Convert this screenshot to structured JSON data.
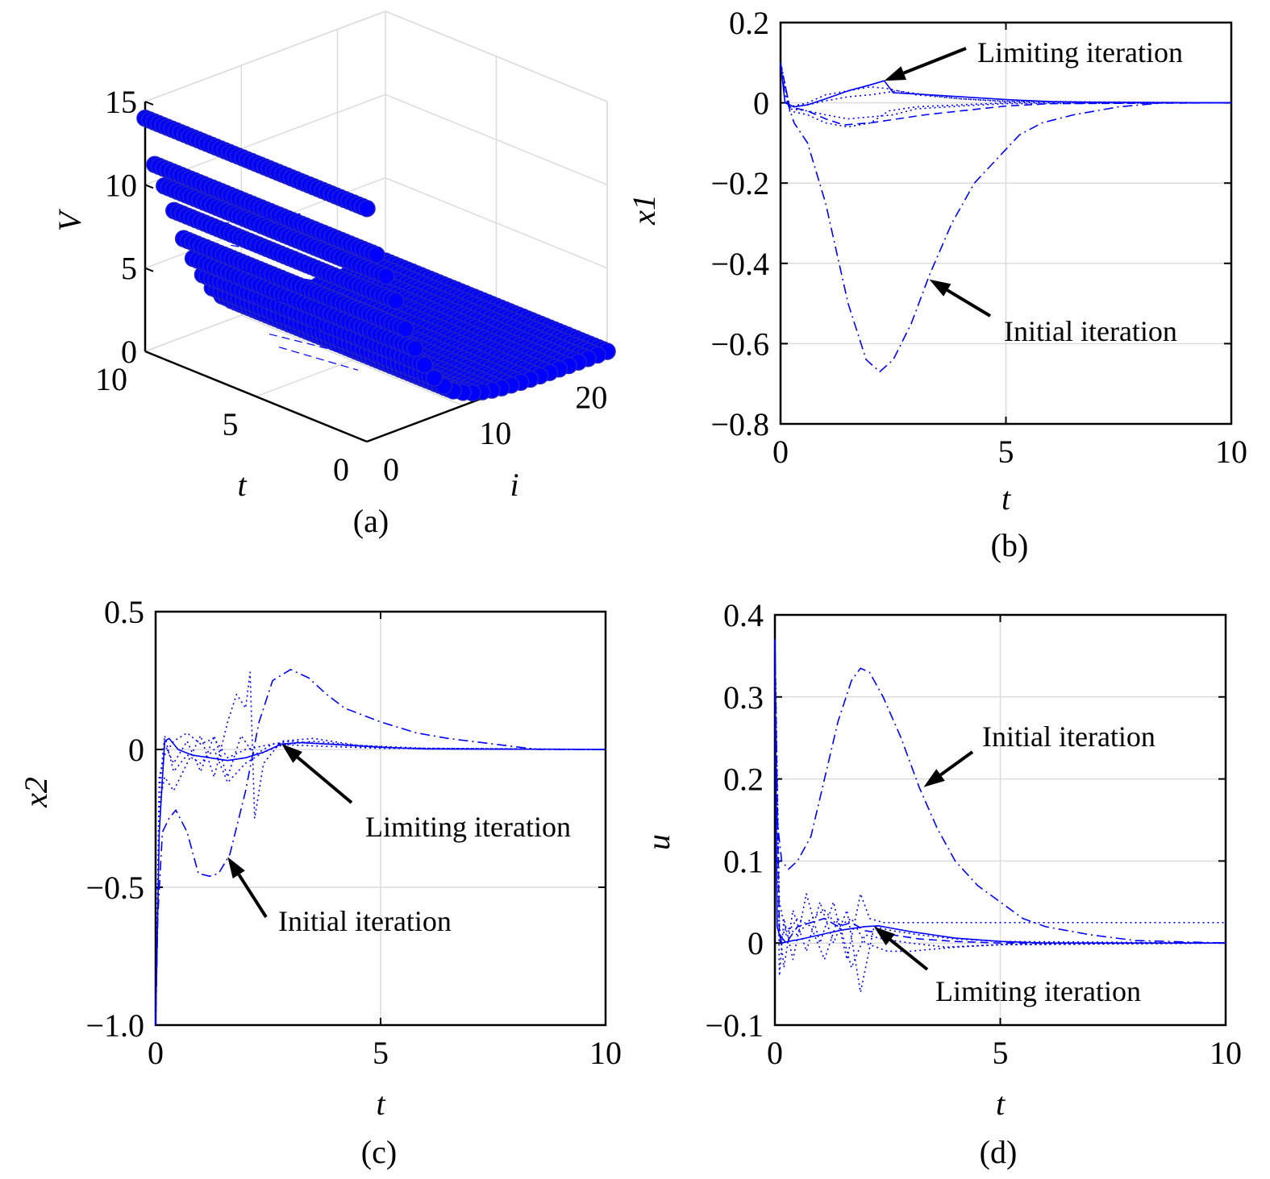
{
  "chart_data": [
    {
      "type": "scatter",
      "panel": "(a)",
      "zlabel": "V",
      "xlabel": "t",
      "ylabel": "i",
      "t_ticks": [
        "0",
        "5",
        "10"
      ],
      "i_ticks": [
        "0",
        "10",
        "20"
      ],
      "v_ticks": [
        "0",
        "5",
        "10",
        "15"
      ],
      "zlim": [
        0,
        15
      ],
      "tlim": [
        0,
        10
      ],
      "ilim": [
        0,
        25
      ],
      "V_by_iteration": [
        14,
        11,
        9.5,
        7.8,
        5.9,
        4.5,
        3.3,
        2.3,
        1.6,
        1.1,
        0.8,
        0.55,
        0.4,
        0.28,
        0.2,
        0.15,
        0.1,
        0.07,
        0.05,
        0.04,
        0.03,
        0.02,
        0.015,
        0.01,
        0.005,
        0.0
      ],
      "color": "#0000ff",
      "grid": true
    },
    {
      "type": "line",
      "panel": "(b)",
      "xlabel": "t",
      "ylabel": "x1",
      "xlim": [
        0,
        10
      ],
      "ylim": [
        -0.8,
        0.2
      ],
      "xticks": [
        "0",
        "5",
        "10"
      ],
      "yticks": [
        "0.2",
        "0",
        "−0.2",
        "−0.4",
        "−0.6",
        "−0.8"
      ],
      "grid": true,
      "annotations": [
        {
          "text": "Limiting iteration",
          "arrow_to": [
            2.3,
            0.055
          ]
        },
        {
          "text": "Initial iteration",
          "arrow_to": [
            3.3,
            -0.44
          ]
        }
      ],
      "series": [
        {
          "style": "dashdot",
          "x": [
            0,
            0.1,
            0.3,
            0.6,
            1.0,
            1.5,
            1.9,
            2.2,
            2.5,
            2.9,
            3.3,
            3.8,
            4.3,
            4.8,
            5.3,
            5.8,
            6.5,
            7.5,
            8.5,
            10
          ],
          "y": [
            0.1,
            0.02,
            -0.05,
            -0.1,
            -0.25,
            -0.5,
            -0.64,
            -0.67,
            -0.64,
            -0.55,
            -0.43,
            -0.3,
            -0.2,
            -0.14,
            -0.08,
            -0.05,
            -0.03,
            -0.01,
            0,
            0
          ]
        },
        {
          "style": "solid",
          "x": [
            0,
            0.1,
            0.3,
            0.6,
            1.0,
            1.5,
            2.0,
            2.3,
            2.5,
            3.0,
            4.0,
            5.0,
            6.0,
            7.0,
            10
          ],
          "y": [
            0.1,
            0.0,
            -0.01,
            -0.005,
            0.01,
            0.03,
            0.045,
            0.055,
            0.025,
            0.022,
            0.015,
            0.008,
            0.003,
            0.001,
            0
          ]
        },
        {
          "style": "dotted",
          "x": [
            0,
            0.2,
            0.6,
            1.0,
            1.5,
            2.0,
            2.4,
            3.0,
            4.0,
            5.0,
            6.0,
            10
          ],
          "y": [
            0.1,
            -0.02,
            -0.03,
            -0.05,
            -0.06,
            -0.05,
            -0.02,
            -0.01,
            -0.005,
            0,
            0,
            0
          ]
        },
        {
          "style": "dotted",
          "x": [
            0,
            0.2,
            0.6,
            1.0,
            1.5,
            2.0,
            2.4,
            3.0,
            4.0,
            5.0,
            10
          ],
          "y": [
            0.1,
            -0.01,
            0.0,
            0.02,
            0.03,
            0.04,
            0.035,
            0.02,
            0.01,
            0.004,
            0
          ]
        },
        {
          "style": "dotted",
          "x": [
            0,
            0.2,
            0.6,
            1.0,
            1.5,
            2.0,
            2.5,
            3.0,
            4.0,
            5.0,
            10
          ],
          "y": [
            0.1,
            -0.015,
            -0.02,
            -0.03,
            -0.04,
            -0.035,
            -0.03,
            -0.015,
            -0.008,
            -0.002,
            0
          ]
        },
        {
          "style": "dotted",
          "x": [
            0,
            0.2,
            0.6,
            1.0,
            1.5,
            2.0,
            2.6,
            3.2,
            4.0,
            5.0,
            10
          ],
          "y": [
            0.1,
            -0.01,
            -0.005,
            0.005,
            0.015,
            0.02,
            0.03,
            0.02,
            0.01,
            0.003,
            0
          ]
        },
        {
          "style": "dashed",
          "x": [
            0,
            0.2,
            0.6,
            1.0,
            1.4,
            2.0,
            2.6,
            3.2,
            4.0,
            5.0,
            6.0,
            10
          ],
          "y": [
            0.1,
            -0.01,
            -0.02,
            -0.04,
            -0.055,
            -0.05,
            -0.04,
            -0.03,
            -0.02,
            -0.008,
            -0.002,
            0
          ]
        }
      ]
    },
    {
      "type": "line",
      "panel": "(c)",
      "xlabel": "t",
      "ylabel": "x2",
      "xlim": [
        0,
        10
      ],
      "ylim": [
        -1.0,
        0.5
      ],
      "xticks": [
        "0",
        "5",
        "10"
      ],
      "yticks": [
        "0.5",
        "0",
        "−0.5",
        "−1.0"
      ],
      "grid": true,
      "annotations": [
        {
          "text": "Limiting iteration",
          "arrow_to": [
            2.8,
            0.02
          ]
        },
        {
          "text": "Initial iteration",
          "arrow_to": [
            1.6,
            -0.39
          ]
        }
      ],
      "series": [
        {
          "style": "dashdot",
          "x": [
            0,
            0.05,
            0.15,
            0.3,
            0.45,
            0.7,
            0.95,
            1.2,
            1.4,
            1.65,
            2.0,
            2.3,
            2.6,
            3.0,
            3.4,
            3.8,
            4.2,
            5.0,
            5.8,
            6.5,
            7.5,
            8.5,
            10
          ],
          "y": [
            -1.0,
            -0.6,
            -0.3,
            -0.25,
            -0.22,
            -0.3,
            -0.45,
            -0.46,
            -0.45,
            -0.38,
            -0.15,
            0.1,
            0.25,
            0.29,
            0.26,
            0.2,
            0.15,
            0.1,
            0.06,
            0.04,
            0.02,
            0,
            0
          ]
        },
        {
          "style": "solid",
          "x": [
            0,
            0.08,
            0.2,
            0.3,
            0.5,
            0.8,
            1.2,
            1.6,
            2.0,
            2.4,
            2.8,
            3.2,
            4.0,
            5.0,
            6.0,
            10
          ],
          "y": [
            -1.0,
            -0.3,
            0.03,
            0.04,
            0.0,
            -0.02,
            -0.03,
            -0.04,
            -0.03,
            -0.01,
            0.02,
            0.025,
            0.018,
            0.008,
            0.002,
            0
          ]
        },
        {
          "style": "dotted",
          "x": [
            0,
            0.08,
            0.2,
            0.4,
            0.7,
            1.0,
            1.3,
            1.6,
            1.8,
            2.0,
            2.1,
            2.2,
            2.4,
            2.8,
            3.5,
            4.5,
            5.5,
            10
          ],
          "y": [
            -1.0,
            -0.2,
            -0.1,
            -0.15,
            -0.05,
            0.05,
            -0.1,
            0.1,
            0.2,
            0.15,
            0.28,
            -0.25,
            -0.05,
            0.03,
            0.04,
            0.015,
            0.005,
            0
          ]
        },
        {
          "style": "dotted",
          "x": [
            0,
            0.08,
            0.2,
            0.4,
            0.7,
            1.0,
            1.3,
            1.6,
            1.9,
            2.2,
            2.6,
            3.0,
            3.8,
            4.8,
            6.0,
            10
          ],
          "y": [
            -1.0,
            -0.25,
            0.02,
            -0.05,
            0.03,
            -0.08,
            0.05,
            -0.1,
            0.05,
            -0.02,
            0.02,
            0.03,
            0.02,
            0.008,
            0.002,
            0
          ]
        },
        {
          "style": "dotted",
          "x": [
            0,
            0.08,
            0.2,
            0.4,
            0.7,
            1.0,
            1.3,
            1.6,
            2.0,
            2.4,
            2.8,
            3.5,
            4.5,
            6.0,
            10
          ],
          "y": [
            -1.0,
            -0.15,
            0.05,
            -0.08,
            -0.02,
            -0.05,
            0.0,
            -0.12,
            -0.05,
            -0.01,
            0.015,
            0.03,
            0.015,
            0.004,
            0
          ]
        },
        {
          "style": "dotted",
          "x": [
            0,
            0.08,
            0.2,
            0.4,
            0.7,
            1.0,
            1.3,
            1.6,
            2.0,
            2.6,
            3.2,
            4.0,
            5.0,
            10
          ],
          "y": [
            -1.0,
            -0.1,
            -0.02,
            0.03,
            0.06,
            0.02,
            0.04,
            -0.03,
            0.0,
            0.02,
            0.015,
            0.01,
            0.004,
            0
          ]
        }
      ]
    },
    {
      "type": "line",
      "panel": "(d)",
      "xlabel": "t",
      "ylabel": "u",
      "xlim": [
        0,
        10
      ],
      "ylim": [
        -0.1,
        0.4
      ],
      "xticks": [
        "0",
        "5",
        "10"
      ],
      "yticks": [
        "0.4",
        "0.3",
        "0.2",
        "0.1",
        "0",
        "−0.1"
      ],
      "grid": true,
      "annotations": [
        {
          "text": "Initial iteration",
          "arrow_to": [
            3.3,
            0.19
          ]
        },
        {
          "text": "Limiting iteration",
          "arrow_to": [
            2.2,
            0.02
          ]
        }
      ],
      "series": [
        {
          "style": "dashdot",
          "x": [
            0,
            0.05,
            0.15,
            0.3,
            0.5,
            0.8,
            1.1,
            1.4,
            1.7,
            1.9,
            2.1,
            2.4,
            2.8,
            3.2,
            3.6,
            4.0,
            4.5,
            5.0,
            5.5,
            6.0,
            7.0,
            8.0,
            10
          ],
          "y": [
            0.37,
            0.15,
            0.1,
            0.09,
            0.1,
            0.13,
            0.2,
            0.27,
            0.32,
            0.335,
            0.33,
            0.3,
            0.25,
            0.19,
            0.14,
            0.1,
            0.07,
            0.05,
            0.03,
            0.02,
            0.01,
            0.003,
            0
          ]
        },
        {
          "style": "solid",
          "x": [
            0,
            0.05,
            0.15,
            0.3,
            0.6,
            1.0,
            1.5,
            2.0,
            2.3,
            2.6,
            3.0,
            3.5,
            4.0,
            5.0,
            6.0,
            10
          ],
          "y": [
            0.37,
            0.02,
            0.0,
            0.002,
            0.005,
            0.01,
            0.016,
            0.02,
            0.021,
            0.018,
            0.014,
            0.01,
            0.006,
            0.002,
            0.0,
            0
          ]
        },
        {
          "style": "dotted",
          "x": [
            0,
            0.1,
            0.2,
            0.4,
            0.7,
            1.0,
            1.3,
            1.6,
            1.9,
            2.1,
            2.4,
            3.0,
            4.0,
            5.0,
            10
          ],
          "y": [
            0.37,
            -0.04,
            0.03,
            -0.02,
            0.06,
            0.0,
            0.05,
            -0.02,
            0.06,
            0.03,
            0.025,
            0.025,
            0.025,
            0.025,
            0.025
          ]
        },
        {
          "style": "dotted",
          "x": [
            0,
            0.1,
            0.2,
            0.4,
            0.7,
            1.0,
            1.3,
            1.6,
            1.9,
            2.2,
            2.6,
            3.2,
            4.0,
            5.0,
            10
          ],
          "y": [
            0.37,
            0.02,
            -0.03,
            0.04,
            -0.01,
            0.05,
            0.0,
            0.04,
            -0.06,
            0.02,
            0.015,
            0.01,
            0.005,
            0.002,
            0
          ]
        },
        {
          "style": "dotted",
          "x": [
            0,
            0.1,
            0.25,
            0.5,
            0.8,
            1.1,
            1.4,
            1.7,
            2.0,
            2.4,
            3.0,
            3.8,
            5.0,
            10
          ],
          "y": [
            0.37,
            0.05,
            0.01,
            0.03,
            0.02,
            -0.02,
            0.03,
            -0.03,
            0.01,
            0.005,
            0.0,
            -0.005,
            -0.002,
            0
          ]
        },
        {
          "style": "dotted",
          "x": [
            0,
            0.1,
            0.25,
            0.5,
            0.8,
            1.1,
            1.4,
            1.7,
            2.0,
            2.5,
            3.0,
            4.0,
            5.0,
            10
          ],
          "y": [
            0.37,
            0.0,
            0.02,
            0.01,
            0.03,
            0.04,
            0.02,
            0.03,
            0.0,
            -0.01,
            -0.01,
            -0.005,
            -0.002,
            0
          ]
        },
        {
          "style": "dashed",
          "x": [
            0,
            0.1,
            0.25,
            0.5,
            0.8,
            1.1,
            1.4,
            1.7,
            2.0,
            2.6,
            3.2,
            4.0,
            5.0,
            10
          ],
          "y": [
            0.37,
            0.01,
            0.0,
            0.02,
            0.025,
            0.03,
            0.02,
            0.025,
            0.015,
            0.01,
            0.005,
            0.002,
            0.0,
            0
          ]
        }
      ]
    }
  ]
}
